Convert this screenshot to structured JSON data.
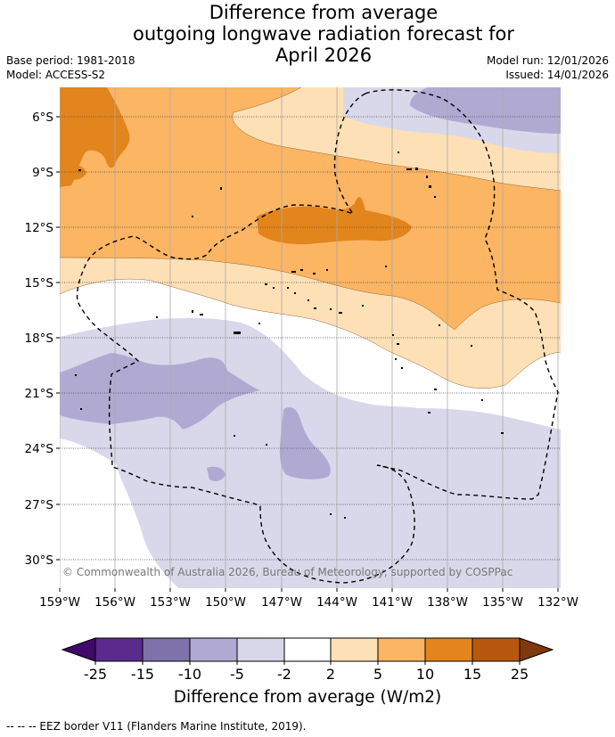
{
  "title": {
    "line1": "Difference from average",
    "line2": "outgoing longwave radiation forecast for",
    "line3": "April 2026"
  },
  "meta": {
    "base_period": "Base period: 1981-2018",
    "model": "Model: ACCESS-S2",
    "model_run": "Model run: 12/01/2026",
    "issued": "Issued: 14/01/2026"
  },
  "map": {
    "copyright": "© Commonwealth of Australia 2026, Bureau of Meteorology, supported by COSPPac",
    "lat_labels": [
      "6°S",
      "9°S",
      "12°S",
      "15°S",
      "18°S",
      "21°S",
      "24°S",
      "27°S",
      "30°S"
    ],
    "lon_labels": [
      "159°W",
      "156°W",
      "153°W",
      "150°W",
      "147°W",
      "144°W",
      "141°W",
      "138°W",
      "135°W",
      "132°W"
    ]
  },
  "colorbar": {
    "title": "Difference from average (W/m2)",
    "tick_labels": [
      "-25",
      "-15",
      "-10",
      "-5",
      "-2",
      "2",
      "5",
      "10",
      "15",
      "25"
    ],
    "colors": {
      "below_-25": "#3f0a68",
      "-25_-15": "#5a2a8c",
      "-15_-10": "#7e72aa",
      "-10_-5": "#b0aad3",
      "-5_-2": "#d9d8ea",
      "-2_2": "#ffffff",
      "2_5": "#fde0b6",
      "5_10": "#fbb563",
      "10_15": "#e2851c",
      "15_25": "#b8580e",
      "above_25": "#7e3a0b"
    }
  },
  "footer": "--  --  -- EEZ border V11 (Flanders Marine Institute, 2019)."
}
